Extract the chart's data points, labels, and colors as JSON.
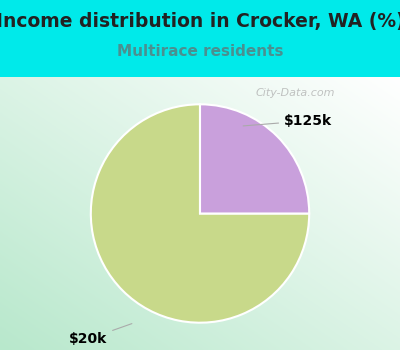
{
  "title": "Income distribution in Crocker, WA (%)",
  "subtitle": "Multirace residents",
  "slices": [
    75,
    25
  ],
  "labels": [
    "$20k",
    "$125k"
  ],
  "colors": [
    "#c8d98a",
    "#c9a0dc"
  ],
  "bg_color": "#00eaea",
  "title_fontsize": 13.5,
  "title_color": "#222222",
  "subtitle_fontsize": 11,
  "subtitle_color": "#4a9090",
  "label_fontsize": 10,
  "watermark": "City-Data.com",
  "start_angle": 90,
  "gradient_colors": [
    "#e8f5e8",
    "#ffffff"
  ],
  "gradient_bottom_color": "#c8ead0"
}
